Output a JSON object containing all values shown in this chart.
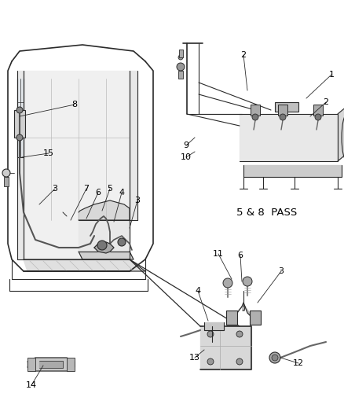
{
  "background_color": "#ffffff",
  "fig_width": 4.39,
  "fig_height": 5.33,
  "dpi": 100,
  "label_5_8_pass": "5 & 8  PASS",
  "line_color": "#2a2a2a",
  "text_color": "#000000",
  "gray_light": "#c8c8c8",
  "gray_mid": "#999999",
  "gray_dark": "#555555"
}
